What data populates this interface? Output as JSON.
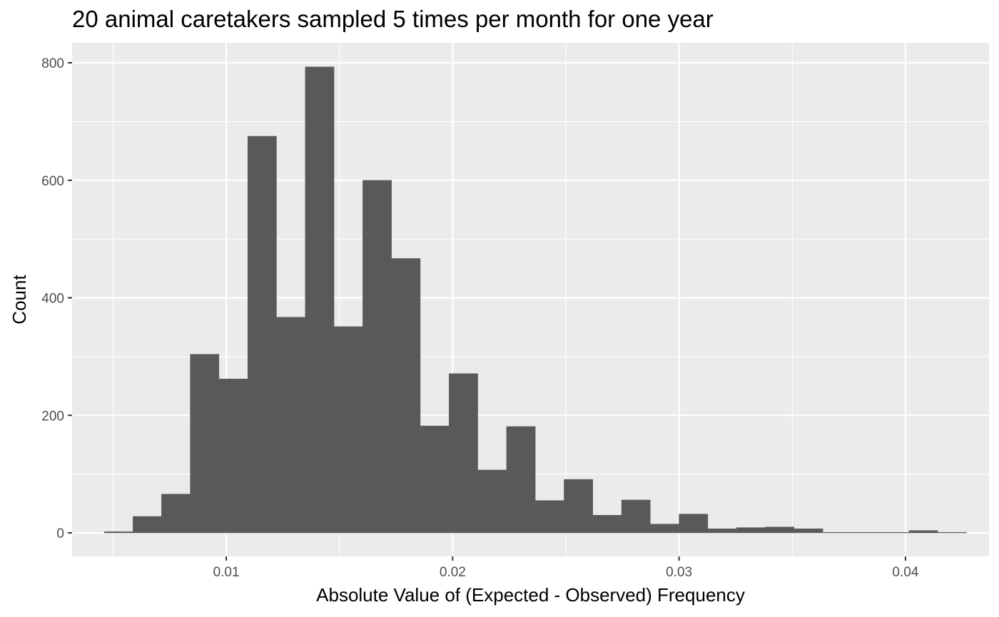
{
  "chart_data": {
    "type": "bar",
    "title": "20 animal caretakers sampled 5 times per month for one year",
    "xlabel": "Absolute Value of (Expected - Observed) Frequency",
    "ylabel": "Count",
    "x_ticks": [
      0.01,
      0.02,
      0.03,
      0.04
    ],
    "x_tick_labels": [
      "0.01",
      "0.02",
      "0.03",
      "0.04"
    ],
    "y_ticks": [
      0,
      200,
      400,
      600,
      800
    ],
    "y_tick_labels": [
      "0",
      "200",
      "400",
      "600",
      "800"
    ],
    "xlim": [
      0.00319,
      0.04369
    ],
    "ylim": [
      -40,
      834
    ],
    "grid": true,
    "bar_color": "#595959",
    "panel_color": "#EBEBEB",
    "grid_color": "#FFFFFF",
    "bins": [
      {
        "x0": 0.00461,
        "x1": 0.00588,
        "count": 2
      },
      {
        "x0": 0.00588,
        "x1": 0.00714,
        "count": 28
      },
      {
        "x0": 0.00714,
        "x1": 0.00841,
        "count": 66
      },
      {
        "x0": 0.00841,
        "x1": 0.00968,
        "count": 304
      },
      {
        "x0": 0.00968,
        "x1": 0.01095,
        "count": 262
      },
      {
        "x0": 0.01095,
        "x1": 0.01222,
        "count": 675
      },
      {
        "x0": 0.01222,
        "x1": 0.01349,
        "count": 367
      },
      {
        "x0": 0.01349,
        "x1": 0.01476,
        "count": 793
      },
      {
        "x0": 0.01476,
        "x1": 0.01603,
        "count": 351
      },
      {
        "x0": 0.01603,
        "x1": 0.0173,
        "count": 600
      },
      {
        "x0": 0.0173,
        "x1": 0.01857,
        "count": 467
      },
      {
        "x0": 0.01857,
        "x1": 0.01984,
        "count": 182
      },
      {
        "x0": 0.01984,
        "x1": 0.02111,
        "count": 271
      },
      {
        "x0": 0.02111,
        "x1": 0.02238,
        "count": 107
      },
      {
        "x0": 0.02238,
        "x1": 0.02365,
        "count": 181
      },
      {
        "x0": 0.02365,
        "x1": 0.02492,
        "count": 55
      },
      {
        "x0": 0.02492,
        "x1": 0.02619,
        "count": 91
      },
      {
        "x0": 0.02619,
        "x1": 0.02746,
        "count": 30
      },
      {
        "x0": 0.02746,
        "x1": 0.02873,
        "count": 56
      },
      {
        "x0": 0.02873,
        "x1": 0.03,
        "count": 15
      },
      {
        "x0": 0.03,
        "x1": 0.03127,
        "count": 32
      },
      {
        "x0": 0.03127,
        "x1": 0.03254,
        "count": 7
      },
      {
        "x0": 0.03254,
        "x1": 0.03381,
        "count": 9
      },
      {
        "x0": 0.03381,
        "x1": 0.03508,
        "count": 10
      },
      {
        "x0": 0.03508,
        "x1": 0.03635,
        "count": 7
      },
      {
        "x0": 0.03635,
        "x1": 0.03762,
        "count": 1
      },
      {
        "x0": 0.03762,
        "x1": 0.03889,
        "count": 1
      },
      {
        "x0": 0.03889,
        "x1": 0.04016,
        "count": 1
      },
      {
        "x0": 0.04016,
        "x1": 0.04143,
        "count": 4
      },
      {
        "x0": 0.04143,
        "x1": 0.0427,
        "count": 1
      }
    ]
  }
}
